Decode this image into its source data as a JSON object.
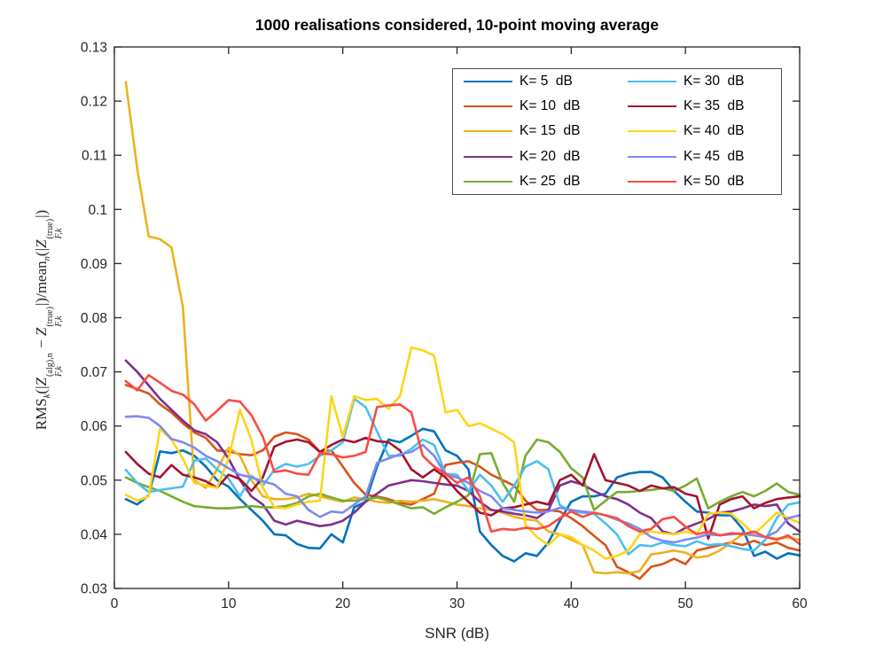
{
  "title": "1000 realisations considered, 10-point moving average",
  "axes": {
    "xlabel": "SNR (dB)",
    "x_ticks": [
      0,
      10,
      20,
      30,
      40,
      50,
      60
    ],
    "y_tick_labels": [
      "0.03",
      "0.04",
      "0.05",
      "0.06",
      "0.07",
      "0.08",
      "0.09",
      "0.1",
      "0.11",
      "0.12",
      "0.13"
    ],
    "y_ticks": [
      0.03,
      0.04,
      0.05,
      0.06,
      0.07,
      0.08,
      0.09,
      0.1,
      0.11,
      0.12,
      0.13
    ],
    "spine_color": "#262626"
  },
  "ylabel_parts": [
    {
      "t": "rm",
      "v": "RMS"
    },
    {
      "t": "sub",
      "v": "k"
    },
    {
      "t": "rm",
      "v": "(|"
    },
    {
      "t": "var",
      "v": "Z"
    },
    {
      "t": "stack",
      "sup": "(alg),n",
      "sub": "F,k"
    },
    {
      "t": "rm",
      "v": " − "
    },
    {
      "t": "var",
      "v": "Z"
    },
    {
      "t": "stack",
      "sup": "(true)",
      "sub": "F,k"
    },
    {
      "t": "rm",
      "v": "|)/"
    },
    {
      "t": "rm",
      "v": "mean"
    },
    {
      "t": "sub",
      "v": "n"
    },
    {
      "t": "rm",
      "v": "(|"
    },
    {
      "t": "var",
      "v": "Z"
    },
    {
      "t": "stack",
      "sup": "(true)",
      "sub": "F,k"
    },
    {
      "t": "rm",
      "v": "|)"
    }
  ],
  "legend": {
    "items": [
      {
        "label": "K= 5  dB",
        "color": "#0072BD"
      },
      {
        "label": "K= 10  dB",
        "color": "#D95319"
      },
      {
        "label": "K= 15  dB",
        "color": "#EDB120"
      },
      {
        "label": "K= 20  dB",
        "color": "#7E2F8E"
      },
      {
        "label": "K= 25  dB",
        "color": "#77AC30"
      },
      {
        "label": "K= 30  dB",
        "color": "#4DBEEE"
      },
      {
        "label": "K= 35  dB",
        "color": "#A2142F"
      },
      {
        "label": "K= 40  dB",
        "color": "#FFD419"
      },
      {
        "label": "K= 45  dB",
        "color": "#7B8CF0"
      },
      {
        "label": "K= 50  dB",
        "color": "#FA4B42"
      }
    ]
  },
  "chart_data": {
    "type": "line",
    "title": "1000 realisations considered, 10-point moving average",
    "xlabel": "SNR (dB)",
    "ylabel": "RMS_k(|Z_{F,k}^{(alg),n} - Z_{F,k}^{(true)}|)/mean_n(|Z_{F,k}^{(true)}|)",
    "xlim": [
      0,
      60
    ],
    "ylim": [
      0.03,
      0.13
    ],
    "grid": false,
    "legend_position": "upper right, two columns",
    "x": [
      1,
      2,
      3,
      4,
      5,
      6,
      7,
      8,
      9,
      10,
      11,
      12,
      13,
      14,
      15,
      16,
      17,
      18,
      19,
      20,
      21,
      22,
      23,
      24,
      25,
      26,
      27,
      28,
      29,
      30,
      31,
      32,
      33,
      34,
      35,
      36,
      37,
      38,
      39,
      40,
      41,
      42,
      43,
      44,
      45,
      46,
      47,
      48,
      49,
      50,
      51,
      52,
      53,
      54,
      55,
      56,
      57,
      58,
      59,
      60
    ],
    "series": [
      {
        "name": "K= 5 dB",
        "color": "#0072BD",
        "values": [
          0.0465,
          0.0455,
          0.0472,
          0.0553,
          0.055,
          0.0555,
          0.0545,
          0.0525,
          0.05,
          0.0488,
          0.0465,
          0.0445,
          0.0425,
          0.04,
          0.0398,
          0.0382,
          0.0375,
          0.0374,
          0.04,
          0.0385,
          0.045,
          0.046,
          0.0525,
          0.0575,
          0.057,
          0.0582,
          0.0595,
          0.059,
          0.0555,
          0.0545,
          0.052,
          0.0405,
          0.038,
          0.036,
          0.035,
          0.0365,
          0.036,
          0.0385,
          0.0425,
          0.046,
          0.047,
          0.047,
          0.0475,
          0.0505,
          0.0512,
          0.0515,
          0.0515,
          0.0505,
          0.048,
          0.046,
          0.0442,
          0.044,
          0.0435,
          0.0435,
          0.041,
          0.036,
          0.0368,
          0.0355,
          0.0365,
          0.0361
        ]
      },
      {
        "name": "K= 10 dB",
        "color": "#D95319",
        "values": [
          0.0676,
          0.0668,
          0.066,
          0.064,
          0.0625,
          0.0605,
          0.0588,
          0.0578,
          0.0555,
          0.0553,
          0.0548,
          0.0546,
          0.0555,
          0.058,
          0.0588,
          0.0585,
          0.0575,
          0.0552,
          0.0555,
          0.0525,
          0.0495,
          0.0473,
          0.047,
          0.0465,
          0.0458,
          0.0455,
          0.0465,
          0.0475,
          0.0528,
          0.0532,
          0.0535,
          0.0525,
          0.051,
          0.05,
          0.049,
          0.0462,
          0.0445,
          0.0445,
          0.0442,
          0.043,
          0.0415,
          0.0397,
          0.038,
          0.034,
          0.033,
          0.0318,
          0.034,
          0.0345,
          0.0355,
          0.0345,
          0.037,
          0.0375,
          0.038,
          0.0385,
          0.038,
          0.0388,
          0.038,
          0.0385,
          0.0375,
          0.037
        ]
      },
      {
        "name": "K= 15 dB",
        "color": "#EDB120",
        "values": [
          0.1235,
          0.1075,
          0.095,
          0.0945,
          0.093,
          0.082,
          0.05,
          0.0486,
          0.052,
          0.056,
          0.0545,
          0.05,
          0.047,
          0.0465,
          0.0465,
          0.0468,
          0.0475,
          0.047,
          0.0465,
          0.046,
          0.0468,
          0.0465,
          0.046,
          0.0458,
          0.0462,
          0.046,
          0.0462,
          0.0465,
          0.046,
          0.0455,
          0.0452,
          0.0448,
          0.0445,
          0.044,
          0.0432,
          0.0428,
          0.0425,
          0.0405,
          0.04,
          0.039,
          0.038,
          0.033,
          0.0328,
          0.033,
          0.0328,
          0.0332,
          0.0363,
          0.0366,
          0.037,
          0.0366,
          0.0357,
          0.036,
          0.037,
          0.0385,
          0.04,
          0.0398,
          0.0395,
          0.0392,
          0.0394,
          0.039
        ]
      },
      {
        "name": "K= 20 dB",
        "color": "#7E2F8E",
        "values": [
          0.0721,
          0.07,
          0.0675,
          0.065,
          0.063,
          0.061,
          0.0592,
          0.0585,
          0.057,
          0.054,
          0.05,
          0.047,
          0.0455,
          0.0425,
          0.0418,
          0.0425,
          0.042,
          0.0415,
          0.0418,
          0.0425,
          0.044,
          0.046,
          0.0475,
          0.049,
          0.0495,
          0.05,
          0.0498,
          0.0495,
          0.0492,
          0.049,
          0.048,
          0.046,
          0.0445,
          0.0442,
          0.0438,
          0.0435,
          0.043,
          0.0445,
          0.049,
          0.0498,
          0.0492,
          0.048,
          0.047,
          0.0465,
          0.0455,
          0.044,
          0.043,
          0.0405,
          0.04,
          0.0412,
          0.042,
          0.0428,
          0.044,
          0.0442,
          0.0448,
          0.0455,
          0.0452,
          0.0455,
          0.042,
          0.0405
        ]
      },
      {
        "name": "K= 25 dB",
        "color": "#77AC30",
        "values": [
          0.0505,
          0.0495,
          0.0487,
          0.048,
          0.047,
          0.046,
          0.0452,
          0.045,
          0.0448,
          0.0448,
          0.045,
          0.0452,
          0.045,
          0.045,
          0.0452,
          0.0458,
          0.047,
          0.0475,
          0.0468,
          0.0462,
          0.0462,
          0.0465,
          0.0468,
          0.0462,
          0.0455,
          0.0448,
          0.045,
          0.0438,
          0.045,
          0.046,
          0.0472,
          0.0548,
          0.055,
          0.0495,
          0.046,
          0.0545,
          0.0575,
          0.057,
          0.0552,
          0.0522,
          0.0505,
          0.0445,
          0.0462,
          0.0478,
          0.0478,
          0.048,
          0.0482,
          0.0485,
          0.048,
          0.049,
          0.0503,
          0.0448,
          0.046,
          0.047,
          0.0478,
          0.047,
          0.048,
          0.0494,
          0.0478,
          0.0473
        ]
      },
      {
        "name": "K= 30 dB",
        "color": "#4DBEEE",
        "values": [
          0.0519,
          0.0495,
          0.0478,
          0.0482,
          0.0485,
          0.0488,
          0.0536,
          0.054,
          0.052,
          0.0503,
          0.047,
          0.0508,
          0.049,
          0.0519,
          0.053,
          0.0525,
          0.053,
          0.0545,
          0.0555,
          0.057,
          0.065,
          0.0635,
          0.059,
          0.0545,
          0.0545,
          0.0558,
          0.0575,
          0.0565,
          0.0512,
          0.051,
          0.048,
          0.051,
          0.049,
          0.046,
          0.049,
          0.0525,
          0.0535,
          0.052,
          0.0454,
          0.0442,
          0.044,
          0.0438,
          0.042,
          0.04,
          0.0363,
          0.038,
          0.0378,
          0.0385,
          0.038,
          0.0378,
          0.0387,
          0.038,
          0.0382,
          0.0378,
          0.0373,
          0.037,
          0.039,
          0.043,
          0.0455,
          0.0459
        ]
      },
      {
        "name": "K= 35 dB",
        "color": "#A2142F",
        "values": [
          0.0552,
          0.053,
          0.0512,
          0.0505,
          0.0528,
          0.051,
          0.0505,
          0.0498,
          0.0486,
          0.051,
          0.0502,
          0.048,
          0.0505,
          0.0562,
          0.0571,
          0.0575,
          0.057,
          0.0552,
          0.0565,
          0.0575,
          0.057,
          0.0578,
          0.0572,
          0.057,
          0.0555,
          0.052,
          0.0505,
          0.052,
          0.0505,
          0.048,
          0.046,
          0.044,
          0.0435,
          0.0448,
          0.045,
          0.0455,
          0.046,
          0.0455,
          0.05,
          0.051,
          0.049,
          0.0548,
          0.05,
          0.0495,
          0.049,
          0.048,
          0.049,
          0.0485,
          0.0487,
          0.0475,
          0.047,
          0.0392,
          0.0455,
          0.0465,
          0.047,
          0.0448,
          0.0458,
          0.0465,
          0.0468,
          0.047
        ]
      },
      {
        "name": "K= 40 dB",
        "color": "#FFD419",
        "values": [
          0.0473,
          0.0462,
          0.047,
          0.0595,
          0.0575,
          0.054,
          0.0495,
          0.049,
          0.0486,
          0.054,
          0.063,
          0.0574,
          0.0486,
          0.045,
          0.0448,
          0.0455,
          0.046,
          0.0462,
          0.0655,
          0.058,
          0.0655,
          0.0648,
          0.065,
          0.0632,
          0.0655,
          0.0745,
          0.074,
          0.073,
          0.0625,
          0.063,
          0.06,
          0.0605,
          0.0595,
          0.0585,
          0.057,
          0.0417,
          0.0395,
          0.038,
          0.04,
          0.0395,
          0.038,
          0.037,
          0.0355,
          0.036,
          0.037,
          0.04,
          0.0405,
          0.0402,
          0.04,
          0.0405,
          0.04,
          0.0438,
          0.044,
          0.0438,
          0.042,
          0.04,
          0.042,
          0.044,
          0.043,
          0.0421
        ]
      },
      {
        "name": "K= 45 dB",
        "color": "#7B8CF0",
        "values": [
          0.0617,
          0.0618,
          0.0615,
          0.06,
          0.0576,
          0.057,
          0.056,
          0.0545,
          0.0535,
          0.0522,
          0.051,
          0.0505,
          0.0498,
          0.0492,
          0.0475,
          0.047,
          0.0445,
          0.0432,
          0.0442,
          0.044,
          0.0455,
          0.047,
          0.0532,
          0.054,
          0.0548,
          0.0552,
          0.0565,
          0.0545,
          0.051,
          0.0505,
          0.0495,
          0.048,
          0.047,
          0.0448,
          0.0445,
          0.0442,
          0.044,
          0.0442,
          0.0449,
          0.0445,
          0.0442,
          0.044,
          0.0435,
          0.0427,
          0.042,
          0.041,
          0.0395,
          0.0388,
          0.0385,
          0.039,
          0.0394,
          0.04,
          0.0398,
          0.04,
          0.0402,
          0.0398,
          0.0395,
          0.0405,
          0.043,
          0.0435
        ]
      },
      {
        "name": "K= 50 dB",
        "color": "#FA4B42",
        "values": [
          0.0683,
          0.0666,
          0.0694,
          0.068,
          0.0665,
          0.0658,
          0.064,
          0.061,
          0.0628,
          0.0648,
          0.0645,
          0.062,
          0.058,
          0.0515,
          0.0518,
          0.0512,
          0.051,
          0.055,
          0.0548,
          0.0542,
          0.0545,
          0.0552,
          0.0635,
          0.0638,
          0.064,
          0.0625,
          0.0545,
          0.0525,
          0.0512,
          0.0495,
          0.0505,
          0.047,
          0.0405,
          0.041,
          0.0408,
          0.0412,
          0.041,
          0.0415,
          0.043,
          0.0442,
          0.0432,
          0.044,
          0.0435,
          0.043,
          0.0415,
          0.0405,
          0.041,
          0.0428,
          0.0432,
          0.0414,
          0.04,
          0.0405,
          0.0398,
          0.0402,
          0.04,
          0.0405,
          0.0395,
          0.039,
          0.0398,
          0.0382
        ]
      }
    ]
  }
}
